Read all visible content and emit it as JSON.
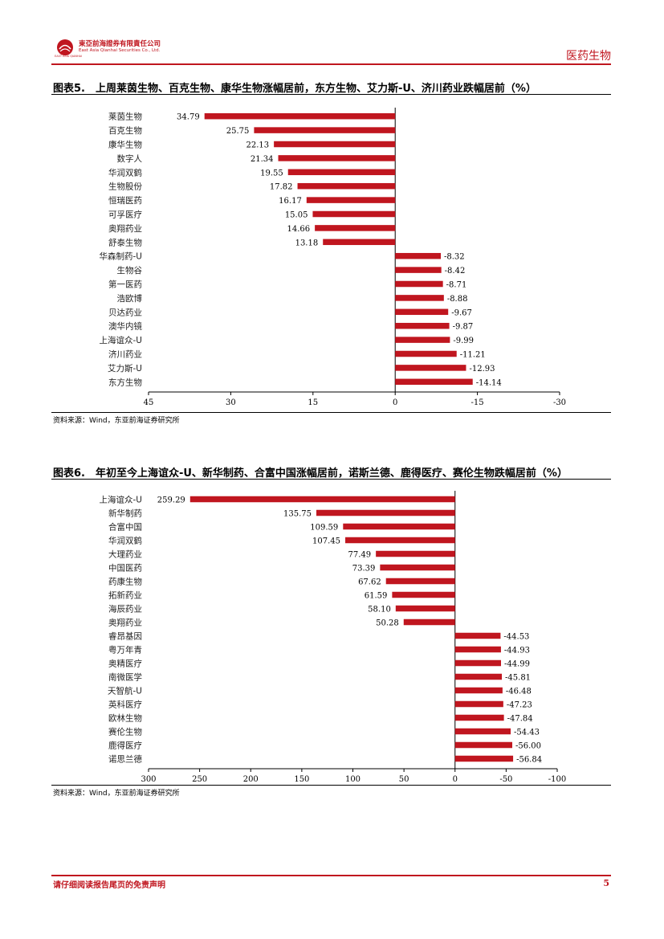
{
  "header": {
    "company_cn": "東亞前海證券有限責任公司",
    "company_en": "East Asia Qianhai Securities Co., Ltd.",
    "logo_sub": "EAST ASIA QIANHAI",
    "section": "医药生物",
    "accent_color": "#c0161f"
  },
  "figure5": {
    "title": "图表5.　上周莱茵生物、百克生物、康华生物涨幅居前，东方生物、艾力斯-U、济川药业跌幅居前（%）",
    "source": "资料来源：Wind，东亚前海证券研究所"
  },
  "figure6": {
    "title": "图表6.　年初至今上海谊众-U、新华制药、合富中国涨幅居前，诺斯兰德、鹿得医疗、赛伦生物跌幅居前（%）",
    "source": "资料来源：Wind，东亚前海证券研究所"
  },
  "footer": {
    "disclaimer": "请仔细阅读报告尾页的免责声明",
    "page": "5"
  },
  "chart_data": [
    {
      "type": "bar",
      "orientation": "horizontal",
      "x_reversed": true,
      "bar_color": "#c0161f",
      "categories": [
        "莱茵生物",
        "百克生物",
        "康华生物",
        "数字人",
        "华润双鹤",
        "生物股份",
        "恒瑞医药",
        "可孚医疗",
        "奥翔药业",
        "舒泰生物",
        "华森制药-U",
        "生物谷",
        "第一医药",
        "浩欧博",
        "贝达药业",
        "澳华内镜",
        "上海谊众-U",
        "济川药业",
        "艾力斯-U",
        "东方生物"
      ],
      "values": [
        34.79,
        25.75,
        22.13,
        21.34,
        19.55,
        17.82,
        16.17,
        15.05,
        14.66,
        13.18,
        -8.32,
        -8.42,
        -8.71,
        -8.88,
        -9.67,
        -9.87,
        -9.99,
        -11.21,
        -12.93,
        -14.14
      ],
      "labels": [
        "34.79",
        "25.75",
        "22.13",
        "21.34",
        "19.55",
        "17.82",
        "16.17",
        "15.05",
        "14.66",
        "13.18",
        "-8.32",
        "-8.42",
        "-8.71",
        "-8.88",
        "-9.67",
        "-9.87",
        "-9.99",
        "-11.21",
        "-12.93",
        "-14.14"
      ],
      "xlim": [
        45,
        -30
      ],
      "ticks": [
        45,
        30,
        15,
        0,
        -15,
        -30
      ],
      "tick_labels": [
        "45",
        "30",
        "15",
        "0",
        "-15",
        "-30"
      ]
    },
    {
      "type": "bar",
      "orientation": "horizontal",
      "x_reversed": true,
      "bar_color": "#c0161f",
      "categories": [
        "上海谊众-U",
        "新华制药",
        "合富中国",
        "华润双鹤",
        "大理药业",
        "中国医药",
        "药康生物",
        "拓新药业",
        "海辰药业",
        "奥翔药业",
        "睿昂基因",
        "粤万年青",
        "奥精医疗",
        "南微医学",
        "天智航-U",
        "英科医疗",
        "欧林生物",
        "赛伦生物",
        "鹿得医疗",
        "诺思兰德"
      ],
      "values": [
        259.29,
        135.75,
        109.59,
        107.45,
        77.49,
        73.39,
        67.62,
        61.59,
        58.1,
        50.28,
        -44.53,
        -44.93,
        -44.99,
        -45.81,
        -46.48,
        -47.23,
        -47.84,
        -54.43,
        -56.0,
        -56.84
      ],
      "labels": [
        "259.29",
        "135.75",
        "109.59",
        "107.45",
        "77.49",
        "73.39",
        "67.62",
        "61.59",
        "58.10",
        "50.28",
        "-44.53",
        "-44.93",
        "-44.99",
        "-45.81",
        "-46.48",
        "-47.23",
        "-47.84",
        "-54.43",
        "-56.00",
        "-56.84"
      ],
      "xlim": [
        300,
        -100
      ],
      "ticks": [
        300,
        250,
        200,
        150,
        100,
        50,
        0,
        -50,
        -100
      ],
      "tick_labels": [
        "300",
        "250",
        "200",
        "150",
        "100",
        "50",
        "0",
        "-50",
        "-100"
      ]
    }
  ]
}
